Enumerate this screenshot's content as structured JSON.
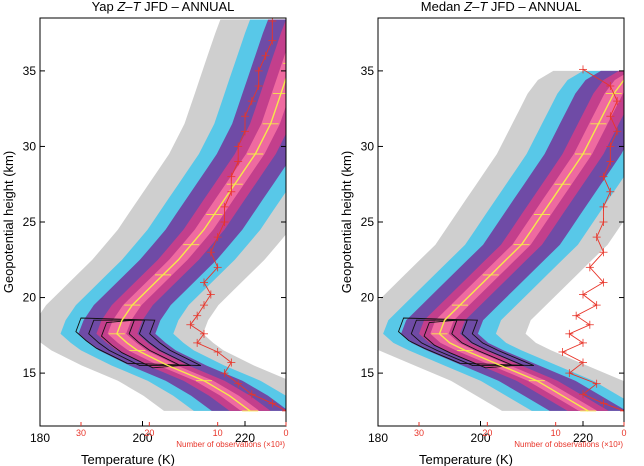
{
  "chart_data": [
    {
      "type": "heatmap",
      "title_prefix": "Yap ",
      "title_italic": "Z–T",
      "title_suffix": " JFD – ANNUAL",
      "xlabel": "Temperature (K)",
      "ylabel": "Geopotential height (km)",
      "x_ticks": [
        180,
        200,
        220
      ],
      "y_ticks": [
        15,
        20,
        25,
        30,
        35
      ],
      "xlim": [
        180,
        228
      ],
      "ylim": [
        11.5,
        38.5
      ],
      "obs_axis_label": "Number of observations (×10³)",
      "obs_ticks": [
        30,
        20,
        10,
        0
      ],
      "obs_lim": [
        36,
        0
      ],
      "grid": false,
      "series": [
        {
          "name": "mean profile",
          "color": "#f5e94a",
          "points": [
            [
              221,
              12.5
            ],
            [
              217,
              13.5
            ],
            [
              212,
              14.5
            ],
            [
              205,
              15.5
            ],
            [
              199,
              16.5
            ],
            [
              197,
              17.0
            ],
            [
              195,
              17.6
            ],
            [
              196,
              18.5
            ],
            [
              198,
              19.5
            ],
            [
              201,
              20.5
            ],
            [
              204,
              21.5
            ],
            [
              207,
              22.5
            ],
            [
              209.5,
              23.5
            ],
            [
              212,
              24.5
            ],
            [
              214,
              25.5
            ],
            [
              216,
              26.5
            ],
            [
              218,
              27.5
            ],
            [
              220,
              28.5
            ],
            [
              222,
              29.5
            ],
            [
              223.5,
              30.5
            ],
            [
              225,
              31.5
            ],
            [
              226,
              32.5
            ],
            [
              227,
              33.5
            ],
            [
              228,
              34.5
            ],
            [
              229,
              35.5
            ],
            [
              230,
              36.5
            ],
            [
              231,
              37.5
            ],
            [
              232,
              38.4
            ]
          ]
        },
        {
          "name": "observations",
          "color": "#e8352a",
          "points": [
            [
              0,
              12.5
            ],
            [
              2,
              13
            ],
            [
              5,
              13.6
            ],
            [
              7,
              14.3
            ],
            [
              9,
              15
            ],
            [
              8,
              15.7
            ],
            [
              10,
              16.4
            ],
            [
              13,
              17
            ],
            [
              12,
              17.6
            ],
            [
              14,
              18.2
            ],
            [
              13,
              18.8
            ],
            [
              12,
              19.5
            ],
            [
              11,
              20.2
            ],
            [
              12,
              21
            ],
            [
              10,
              22
            ],
            [
              11,
              23
            ],
            [
              10,
              24
            ],
            [
              9,
              25
            ],
            [
              9,
              26
            ],
            [
              8,
              27
            ],
            [
              8,
              28
            ],
            [
              7,
              29
            ],
            [
              7,
              30
            ],
            [
              6,
              31
            ],
            [
              6,
              32
            ],
            [
              5,
              33
            ],
            [
              4,
              34
            ],
            [
              4,
              35
            ],
            [
              3,
              36
            ],
            [
              2,
              37
            ],
            [
              2,
              38.3
            ]
          ]
        }
      ]
    },
    {
      "type": "heatmap",
      "title_prefix": "Medan ",
      "title_italic": "Z–T",
      "title_suffix": " JFD – ANNUAL",
      "xlabel": "Temperature (K)",
      "ylabel": "Geopotential height (km)",
      "x_ticks": [
        180,
        200,
        220
      ],
      "y_ticks": [
        15,
        20,
        25,
        30,
        35
      ],
      "xlim": [
        180,
        228
      ],
      "ylim": [
        11.5,
        38.5
      ],
      "obs_axis_label": "Number of observations (×10³)",
      "obs_ticks": [
        30,
        20,
        10,
        0
      ],
      "obs_lim": [
        36,
        0
      ],
      "grid": false,
      "series": [
        {
          "name": "mean profile",
          "color": "#f5e94a",
          "points": [
            [
              221,
              12.5
            ],
            [
              216,
              13.5
            ],
            [
              211,
              14.5
            ],
            [
              204,
              15.5
            ],
            [
              197,
              16.5
            ],
            [
              194,
              17.0
            ],
            [
              192,
              17.6
            ],
            [
              193,
              18.5
            ],
            [
              196,
              19.5
            ],
            [
              199,
              20.5
            ],
            [
              202,
              21.5
            ],
            [
              205,
              22.5
            ],
            [
              208,
              23.5
            ],
            [
              210,
              24.5
            ],
            [
              212,
              25.5
            ],
            [
              214,
              26.5
            ],
            [
              216,
              27.5
            ],
            [
              218,
              28.5
            ],
            [
              220,
              29.5
            ],
            [
              221.5,
              30.5
            ],
            [
              223,
              31.5
            ],
            [
              224.5,
              32.5
            ],
            [
              226,
              33.5
            ],
            [
              228,
              34.4
            ],
            [
              231,
              35.0
            ]
          ]
        },
        {
          "name": "observations",
          "color": "#e8352a",
          "points": [
            [
              0,
              12.5
            ],
            [
              3,
              13
            ],
            [
              6,
              13.6
            ],
            [
              4,
              14.3
            ],
            [
              8,
              15
            ],
            [
              6,
              15.7
            ],
            [
              9,
              16.4
            ],
            [
              6,
              17
            ],
            [
              8,
              17.6
            ],
            [
              5,
              18.2
            ],
            [
              7,
              18.8
            ],
            [
              4,
              19.5
            ],
            [
              6,
              20.2
            ],
            [
              3,
              21
            ],
            [
              5,
              22
            ],
            [
              3,
              23
            ],
            [
              4,
              24
            ],
            [
              3,
              25
            ],
            [
              3,
              26
            ],
            [
              2,
              27
            ],
            [
              3,
              28
            ],
            [
              2,
              29
            ],
            [
              2,
              30
            ],
            [
              1,
              31
            ],
            [
              2,
              32
            ],
            [
              1,
              33
            ],
            [
              2,
              34
            ],
            [
              6,
              35.1
            ]
          ]
        }
      ]
    }
  ]
}
